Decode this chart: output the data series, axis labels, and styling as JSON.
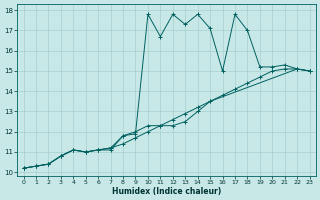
{
  "title": "",
  "xlabel": "Humidex (Indice chaleur)",
  "bg_color": "#c8e8e8",
  "grid_color": "#a0c8c8",
  "line_color": "#006060",
  "xlim": [
    -0.5,
    23.5
  ],
  "ylim": [
    9.8,
    18.3
  ],
  "xticks": [
    0,
    1,
    2,
    3,
    4,
    5,
    6,
    7,
    8,
    9,
    10,
    11,
    12,
    13,
    14,
    15,
    16,
    17,
    18,
    19,
    20,
    21,
    22,
    23
  ],
  "yticks": [
    10,
    11,
    12,
    13,
    14,
    15,
    16,
    17,
    18
  ],
  "line1_x": [
    0,
    1,
    2,
    3,
    4,
    5,
    6,
    7,
    8,
    9,
    10,
    11,
    12,
    13,
    14,
    15,
    16,
    17,
    18,
    19,
    20,
    21,
    22,
    23
  ],
  "line1_y": [
    10.2,
    10.3,
    10.4,
    10.8,
    11.1,
    11.0,
    11.1,
    11.1,
    11.8,
    11.9,
    17.8,
    16.7,
    17.8,
    17.3,
    17.8,
    17.1,
    15.0,
    17.8,
    17.0,
    15.2,
    15.2,
    15.3,
    15.1,
    15.0
  ],
  "line2_x": [
    0,
    1,
    2,
    3,
    4,
    5,
    6,
    7,
    8,
    9,
    10,
    11,
    12,
    13,
    14,
    15,
    16,
    17,
    18,
    19,
    20,
    21,
    22,
    23
  ],
  "line2_y": [
    10.2,
    10.3,
    10.4,
    10.8,
    11.1,
    11.0,
    11.1,
    11.2,
    11.4,
    11.7,
    12.0,
    12.3,
    12.6,
    12.9,
    13.2,
    13.5,
    13.8,
    14.1,
    14.4,
    14.7,
    15.0,
    15.1,
    15.1,
    15.0
  ],
  "line3_x": [
    0,
    1,
    2,
    3,
    4,
    5,
    6,
    7,
    8,
    9,
    10,
    11,
    12,
    13,
    14,
    15,
    22,
    23
  ],
  "line3_y": [
    10.2,
    10.3,
    10.4,
    10.8,
    11.1,
    11.0,
    11.1,
    11.2,
    11.8,
    12.0,
    12.3,
    12.3,
    12.3,
    12.5,
    13.0,
    13.5,
    15.1,
    15.0
  ]
}
